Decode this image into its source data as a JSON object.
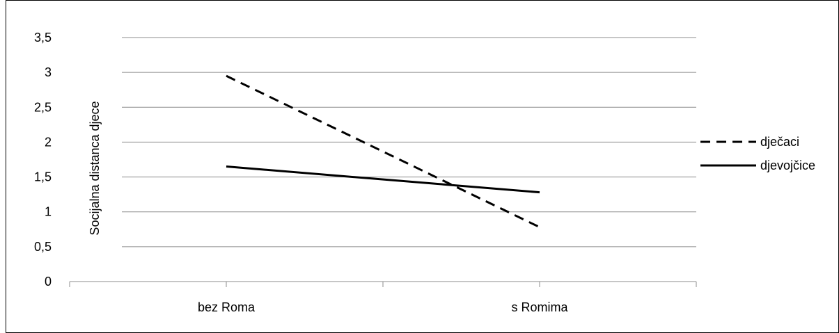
{
  "chart_data": {
    "type": "line",
    "categories": [
      "bez Roma",
      "s Romima"
    ],
    "series": [
      {
        "name": "dječaci",
        "values": [
          2.95,
          0.78
        ],
        "style": "dashed",
        "color": "#000000"
      },
      {
        "name": "djevojčice",
        "values": [
          1.65,
          1.28
        ],
        "style": "solid",
        "color": "#000000"
      }
    ],
    "ylabel": "Socijalna distanca djece",
    "xlabel": "",
    "ylim": [
      0,
      3.5
    ],
    "yticks": [
      "0",
      "0,5",
      "1",
      "1,5",
      "2",
      "2,5",
      "3",
      "3,5"
    ],
    "grid": true,
    "legend": "right"
  }
}
